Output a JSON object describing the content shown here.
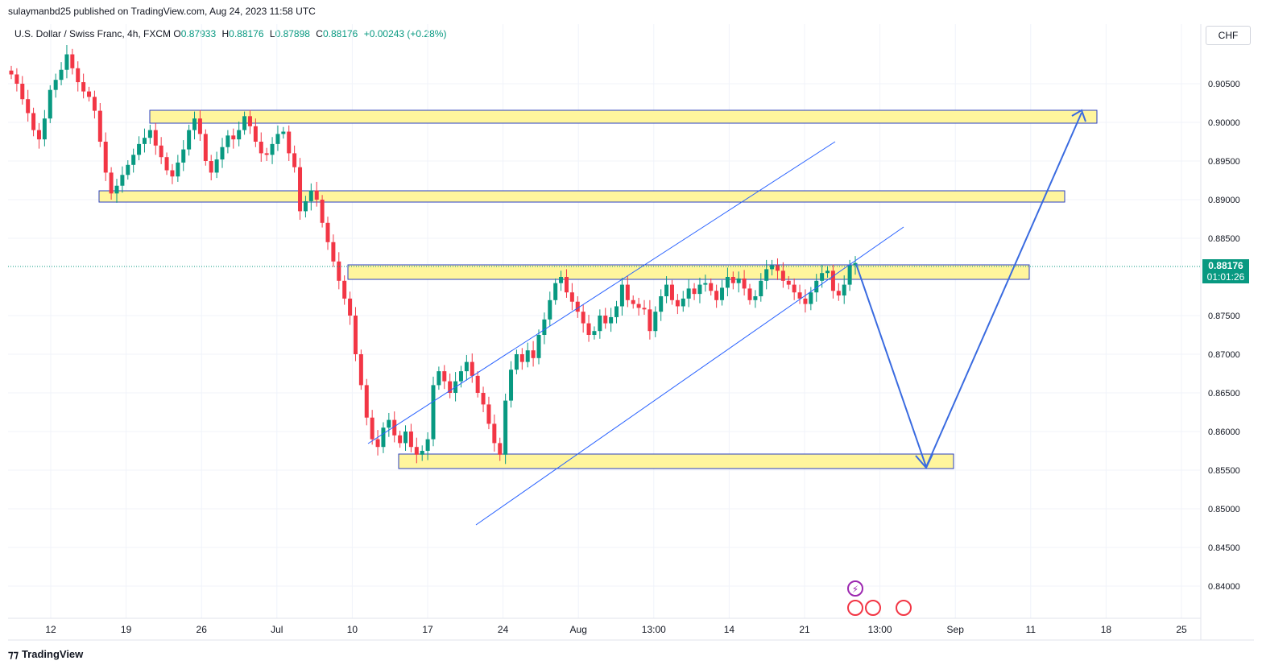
{
  "header": {
    "publisher": "sulaymanbd25 published on TradingView.com, Aug 24, 2023 11:58 UTC"
  },
  "legend": {
    "symbol": "U.S. Dollar / Swiss Franc, 4h, FXCM",
    "o_label": "O",
    "o": "0.87933",
    "h_label": "H",
    "h": "0.88176",
    "l_label": "L",
    "l": "0.87898",
    "c_label": "C",
    "c": "0.88176",
    "change": "+0.00243 (+0.28%)"
  },
  "currency": "CHF",
  "footer": {
    "brand": "TradingView"
  },
  "chart_data": {
    "type": "candlestick",
    "y_ticks": [
      "0.90500",
      "0.90000",
      "0.89500",
      "0.89000",
      "0.88500",
      "0.87500",
      "0.87000",
      "0.86500",
      "0.86000",
      "0.85500",
      "0.85000",
      "0.84500",
      "0.84000"
    ],
    "x_ticks": [
      "12",
      "19",
      "26",
      "Jul",
      "10",
      "17",
      "24",
      "Aug",
      "13:00",
      "14",
      "21",
      "13:00",
      "Sep",
      "11",
      "18",
      "25"
    ],
    "ylim": [
      0.8375,
      0.9105
    ],
    "last_price": {
      "value": "0.88176",
      "countdown": "01:01:26"
    },
    "closes": [
      0.9062,
      0.905,
      0.903,
      0.9012,
      0.899,
      0.8978,
      0.9005,
      0.9042,
      0.9055,
      0.9068,
      0.9088,
      0.907,
      0.9052,
      0.904,
      0.9033,
      0.9015,
      0.8975,
      0.8935,
      0.8908,
      0.8918,
      0.8932,
      0.8945,
      0.8958,
      0.8972,
      0.898,
      0.899,
      0.897,
      0.8955,
      0.8938,
      0.893,
      0.8948,
      0.8965,
      0.899,
      0.9005,
      0.8985,
      0.895,
      0.8935,
      0.8952,
      0.8968,
      0.8983,
      0.8978,
      0.899,
      0.9008,
      0.8995,
      0.8975,
      0.896,
      0.8958,
      0.8972,
      0.8985,
      0.8988,
      0.896,
      0.8942,
      0.8885,
      0.8898,
      0.8912,
      0.89,
      0.887,
      0.8845,
      0.882,
      0.8795,
      0.8772,
      0.875,
      0.87,
      0.866,
      0.8618,
      0.859,
      0.858,
      0.8605,
      0.8615,
      0.8595,
      0.8585,
      0.86,
      0.858,
      0.857,
      0.8575,
      0.859,
      0.866,
      0.8678,
      0.8665,
      0.865,
      0.8665,
      0.8678,
      0.869,
      0.8672,
      0.865,
      0.8635,
      0.861,
      0.8585,
      0.857,
      0.864,
      0.868,
      0.87,
      0.869,
      0.8705,
      0.8695,
      0.8725,
      0.8745,
      0.877,
      0.8792,
      0.88,
      0.878,
      0.8768,
      0.8755,
      0.874,
      0.8725,
      0.873,
      0.875,
      0.874,
      0.8748,
      0.8762,
      0.879,
      0.877,
      0.8765,
      0.876,
      0.8758,
      0.873,
      0.8755,
      0.8775,
      0.879,
      0.877,
      0.8762,
      0.8772,
      0.8785,
      0.8778,
      0.879,
      0.8792,
      0.8782,
      0.877,
      0.8786,
      0.88,
      0.8792,
      0.8798,
      0.8785,
      0.877,
      0.8775,
      0.8795,
      0.881,
      0.8815,
      0.8808,
      0.8795,
      0.879,
      0.878,
      0.8772,
      0.8765,
      0.878,
      0.8795,
      0.8805,
      0.8808,
      0.8782,
      0.8776,
      0.879,
      0.8815,
      0.8818
    ]
  }
}
